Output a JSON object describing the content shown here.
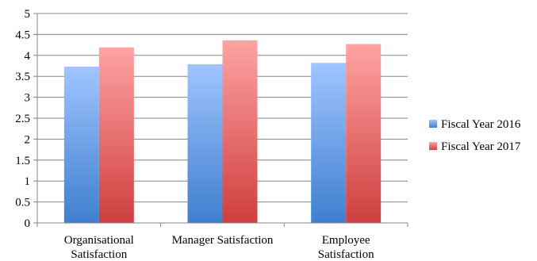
{
  "chart_data": {
    "type": "bar",
    "title": "",
    "xlabel": "",
    "ylabel": "",
    "categories": [
      [
        "Organisational",
        "Satisfaction"
      ],
      [
        "Manager Satisfaction"
      ],
      [
        "Employee",
        "Satisfaction"
      ]
    ],
    "series": [
      {
        "name": "Fiscal Year 2016",
        "values": [
          3.73,
          3.79,
          3.82
        ],
        "color_top": "#9fc5ff",
        "color_bottom": "#3f7fcf"
      },
      {
        "name": "Fiscal Year 2017",
        "values": [
          4.19,
          4.36,
          4.27
        ],
        "color_top": "#ffa3a3",
        "color_bottom": "#cf3f3f"
      }
    ],
    "ylim": [
      0,
      5
    ],
    "yticks": [
      "0",
      "0.5",
      "1",
      "1.5",
      "2",
      "2.5",
      "3",
      "3.5",
      "4",
      "4.5",
      "5"
    ],
    "grid": true,
    "legend_position": "right",
    "axis_color": "#868686",
    "grid_color": "#868686"
  }
}
